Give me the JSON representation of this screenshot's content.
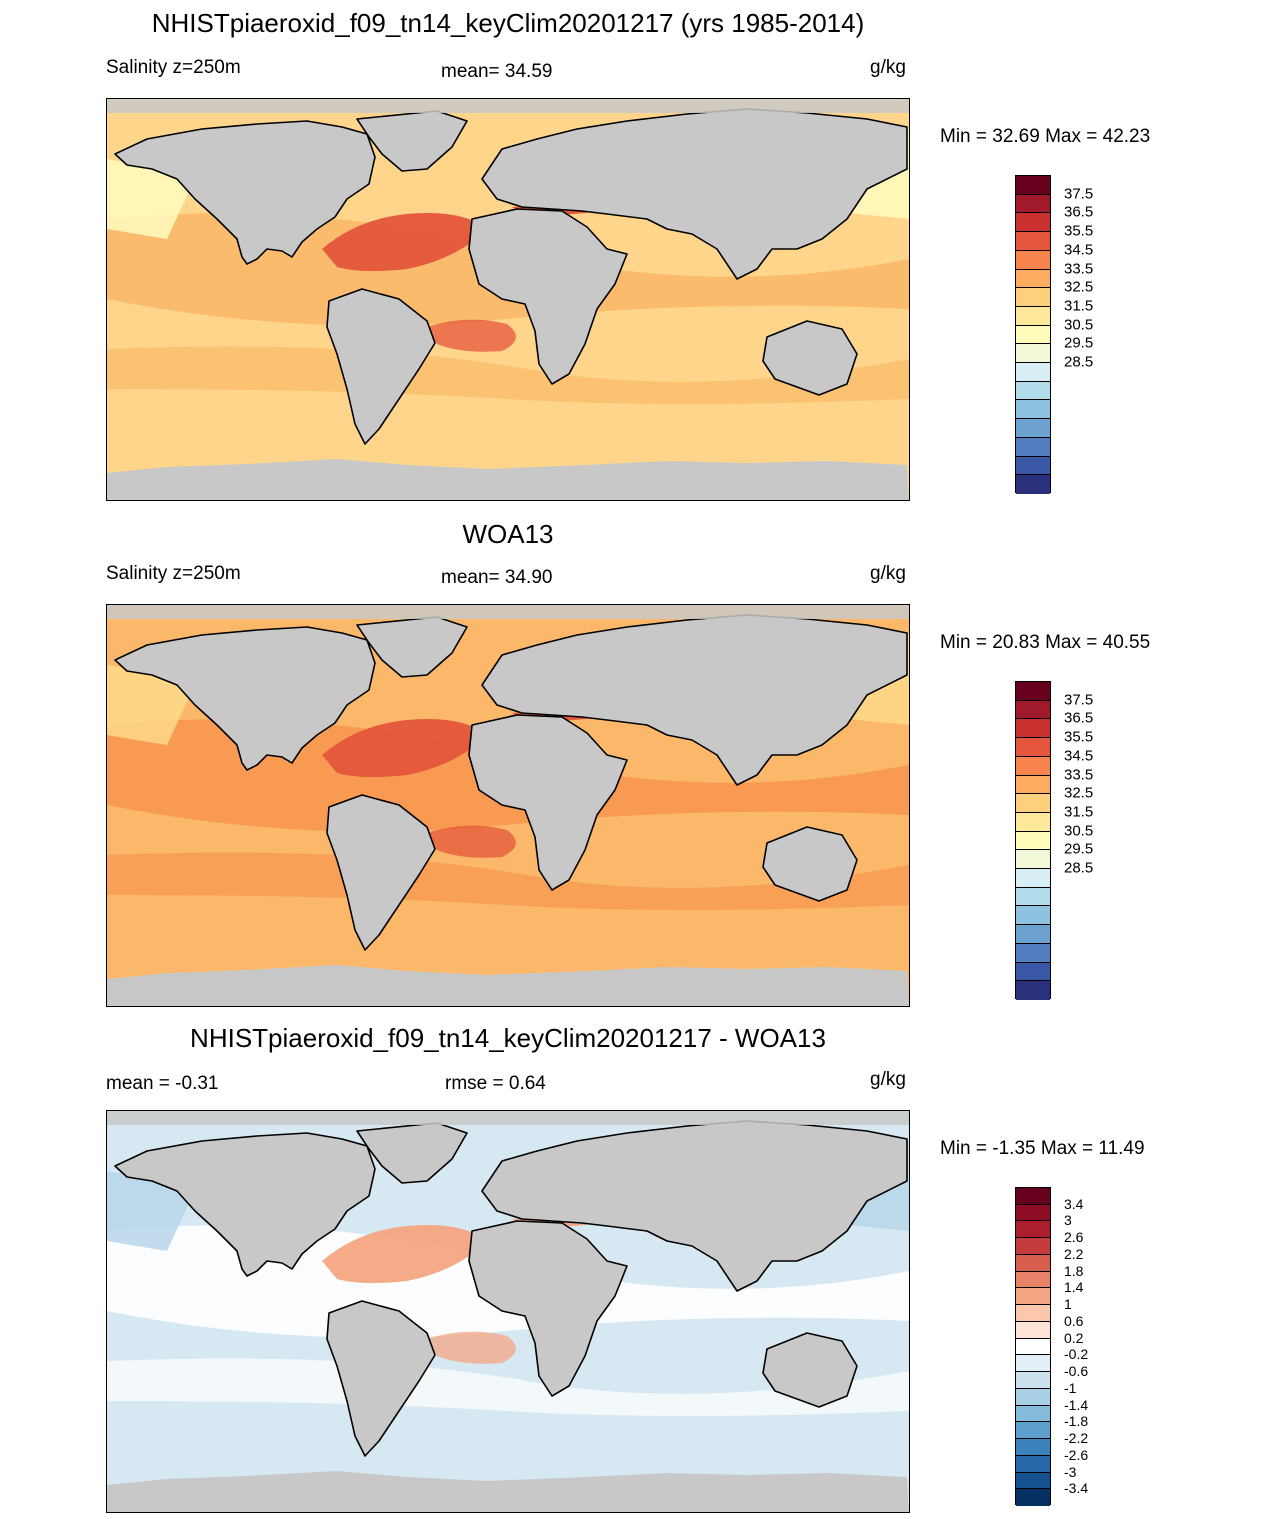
{
  "panels": [
    {
      "title": "NHISTpiaeroxid_f09_tn14_keyClim20201217 (yrs 1985-2014)",
      "left_label": "Salinity z=250m",
      "center_label": "mean=  34.59",
      "units": "g/kg",
      "minmax": "Min =  32.69 Max =  42.23",
      "colorbar": {
        "colors": [
          "#67001f",
          "#a11a2b",
          "#c93130",
          "#e4553b",
          "#f7834d",
          "#fdac5f",
          "#fed07e",
          "#fee89a",
          "#fffbb8",
          "#f1f8d8",
          "#d6eef4",
          "#b1dcec",
          "#8dc3e1",
          "#6da2d0",
          "#527ec0",
          "#3a57a6",
          "#2b307b"
        ],
        "labels": [
          "37.5",
          "36.5",
          "35.5",
          "34.5",
          "33.5",
          "32.5",
          "31.5",
          "30.5",
          "29.5",
          "28.5"
        ]
      },
      "map_style": {
        "ocean": "#fed58a",
        "band": "#f9b968",
        "accent": "#e4553b",
        "cool": "#fffbbf"
      }
    },
    {
      "title": "WOA13",
      "left_label": "Salinity z=250m",
      "center_label": "mean=  34.90",
      "units": "g/kg",
      "minmax": "Min =  20.83 Max =  40.55",
      "colorbar": {
        "colors": [
          "#67001f",
          "#a11a2b",
          "#c93130",
          "#e4553b",
          "#f7834d",
          "#fdac5f",
          "#fed07e",
          "#fee89a",
          "#fffbb8",
          "#f1f8d8",
          "#d6eef4",
          "#b1dcec",
          "#8dc3e1",
          "#6da2d0",
          "#527ec0",
          "#3a57a6",
          "#2b307b"
        ],
        "labels": [
          "37.5",
          "36.5",
          "35.5",
          "34.5",
          "33.5",
          "32.5",
          "31.5",
          "30.5",
          "29.5",
          "28.5"
        ]
      },
      "map_style": {
        "ocean": "#fbb86a",
        "band": "#f7974f",
        "accent": "#e4553b",
        "cool": "#fed88a"
      }
    },
    {
      "title": "NHISTpiaeroxid_f09_tn14_keyClim20201217 - WOA13",
      "left_label": "mean =  -0.31",
      "center_label": "rmse =   0.64",
      "units": "g/kg",
      "minmax": "Min =  -1.35 Max =  11.49",
      "colorbar": {
        "colors": [
          "#67001f",
          "#8c0d25",
          "#ac1e2e",
          "#c43c3c",
          "#d6604d",
          "#e78268",
          "#f4a582",
          "#fbc8ad",
          "#fde4d6",
          "#ffffff",
          "#e3eff6",
          "#cbe2ee",
          "#a9d0e5",
          "#85bcdb",
          "#5c9fcc",
          "#3b82bb",
          "#2668a8",
          "#15508f",
          "#053061"
        ],
        "labels": [
          "3.4",
          "3",
          "2.6",
          "2.2",
          "1.8",
          "1.4",
          "1",
          "0.6",
          "0.2",
          "-0.2",
          "-0.6",
          "-1",
          "-1.4",
          "-1.8",
          "-2.2",
          "-2.6",
          "-3",
          "-3.4"
        ]
      },
      "map_style": {
        "ocean": "#d6e8f2",
        "band": "#ffffff",
        "accent": "#f4a582",
        "cool": "#b7d6ea"
      }
    }
  ]
}
